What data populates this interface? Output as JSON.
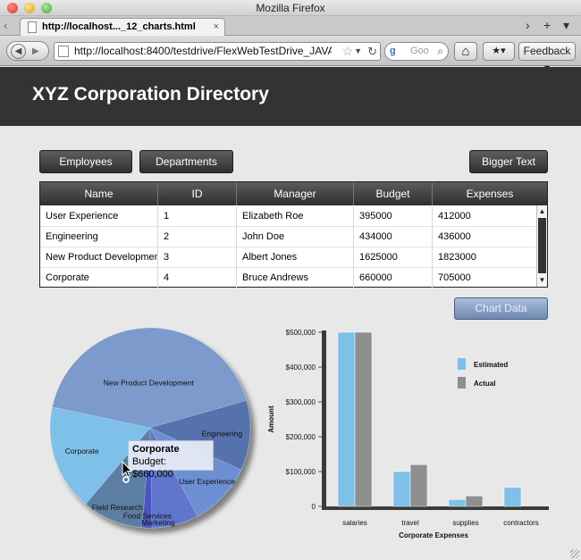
{
  "browser": {
    "window_title": "Mozilla Firefox",
    "tab_title": "http://localhost..._12_charts.html",
    "tab_close": "×",
    "new_tab": "+",
    "tab_list": "▾",
    "tab_scroll": "›",
    "back_glyph": "◀",
    "forward_glyph": "▶",
    "url": "http://localhost:8400/testdrive/FlexWebTestDrive_JAVA",
    "star_glyph": "☆",
    "dropdown_glyph": "▼",
    "reload_glyph": "↻",
    "search_engine_glyph": "g",
    "search_placeholder": "Goo",
    "search_glyph": "⌕",
    "home_glyph": "⌂",
    "bookmarks_glyph": "★▾",
    "feedback_label": "Feedback ▾"
  },
  "app": {
    "title": "XYZ Corporation Directory",
    "buttons": {
      "employees": "Employees",
      "departments": "Departments",
      "bigger_text": "Bigger Text",
      "chart_data": "Chart Data"
    }
  },
  "grid": {
    "columns": [
      "Name",
      "ID",
      "Manager",
      "Budget",
      "Expenses"
    ],
    "rows": [
      [
        "User Experience",
        "1",
        "Elizabeth Roe",
        "395000",
        "412000"
      ],
      [
        "Engineering",
        "2",
        "John Doe",
        "434000",
        "436000"
      ],
      [
        "New Product Development",
        "3",
        "Albert Jones",
        "1625000",
        "1823000"
      ],
      [
        "Corporate",
        "4",
        "Bruce Andrews",
        "660000",
        "705000"
      ]
    ],
    "scroll_up": "▲",
    "scroll_down": "▼"
  },
  "chart_data": [
    {
      "type": "pie",
      "categories": [
        "New Product Development",
        "Engineering",
        "User Experience",
        "Marketing",
        "Food Services",
        "Field Research",
        "Corporate"
      ],
      "values": [
        1625000,
        434000,
        395000,
        290000,
        60000,
        380000,
        660000
      ],
      "colors": [
        "#7b9bcc",
        "#5572ad",
        "#6c8fd1",
        "#5e76cc",
        "#4c55c4",
        "#5d7ea3",
        "#7ec0e8"
      ],
      "tooltip": {
        "title": "Corporate",
        "text": "Budget: $660,000"
      }
    },
    {
      "type": "bar",
      "categories": [
        "salaries",
        "travel",
        "supplies",
        "contractors"
      ],
      "series": [
        {
          "name": "Estimated",
          "values": [
            500000,
            100000,
            20000,
            55000
          ],
          "color": "#7ec0e8"
        },
        {
          "name": "Actual",
          "values": [
            500000,
            120000,
            30000,
            null
          ],
          "color": "#8f8f8f"
        }
      ],
      "xlabel": "Corporate Expenses",
      "ylabel": "Amount",
      "ylim": [
        0,
        500000
      ],
      "yticks": [
        0,
        100000,
        200000,
        300000,
        400000,
        500000
      ],
      "ytick_labels": [
        "0",
        "$100,000",
        "$200,000",
        "$300,000",
        "$400,000",
        "$500,000"
      ],
      "legend_position": "top-right"
    }
  ]
}
